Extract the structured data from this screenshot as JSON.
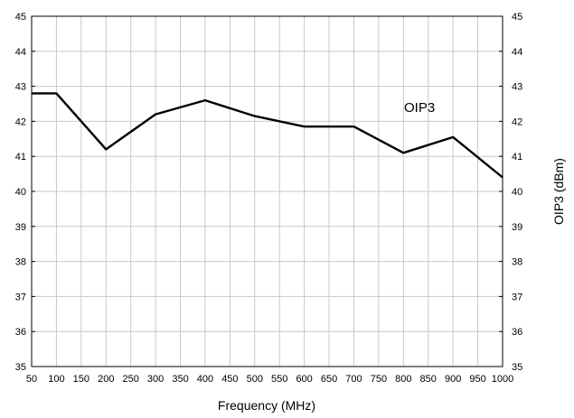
{
  "chart_data": {
    "type": "line",
    "title": "",
    "xlabel": "Frequency (MHz)",
    "ylabel": "OIP3 (dBm)",
    "xlim": [
      50,
      1000
    ],
    "ylim": [
      35,
      45
    ],
    "x_ticks": [
      50,
      100,
      150,
      200,
      250,
      300,
      350,
      400,
      450,
      500,
      550,
      600,
      650,
      700,
      750,
      800,
      850,
      900,
      950,
      1000
    ],
    "x_tick_labels": [
      "50",
      "100",
      "150",
      "200",
      "250",
      "300",
      "350",
      "400",
      "450",
      "500",
      "550",
      "600",
      "650",
      "700",
      "750",
      "800",
      "850",
      "900",
      "950",
      "1000"
    ],
    "y_ticks": [
      35,
      36,
      37,
      38,
      39,
      40,
      41,
      42,
      43,
      44,
      45
    ],
    "y_tick_labels": [
      "35",
      "36",
      "37",
      "38",
      "39",
      "40",
      "41",
      "42",
      "43",
      "44",
      "45"
    ],
    "grid": true,
    "series": [
      {
        "name": "OIP3",
        "x": [
          50,
          100,
          200,
          300,
          400,
          500,
          600,
          700,
          800,
          900,
          1000
        ],
        "y": [
          42.8,
          42.8,
          41.2,
          42.2,
          42.6,
          42.15,
          41.85,
          41.85,
          41.1,
          41.55,
          40.4
        ]
      }
    ],
    "colors": {
      "line": "#000000",
      "grid": "#c8c8c8",
      "frame": "#000000",
      "background": "#ffffff"
    }
  }
}
